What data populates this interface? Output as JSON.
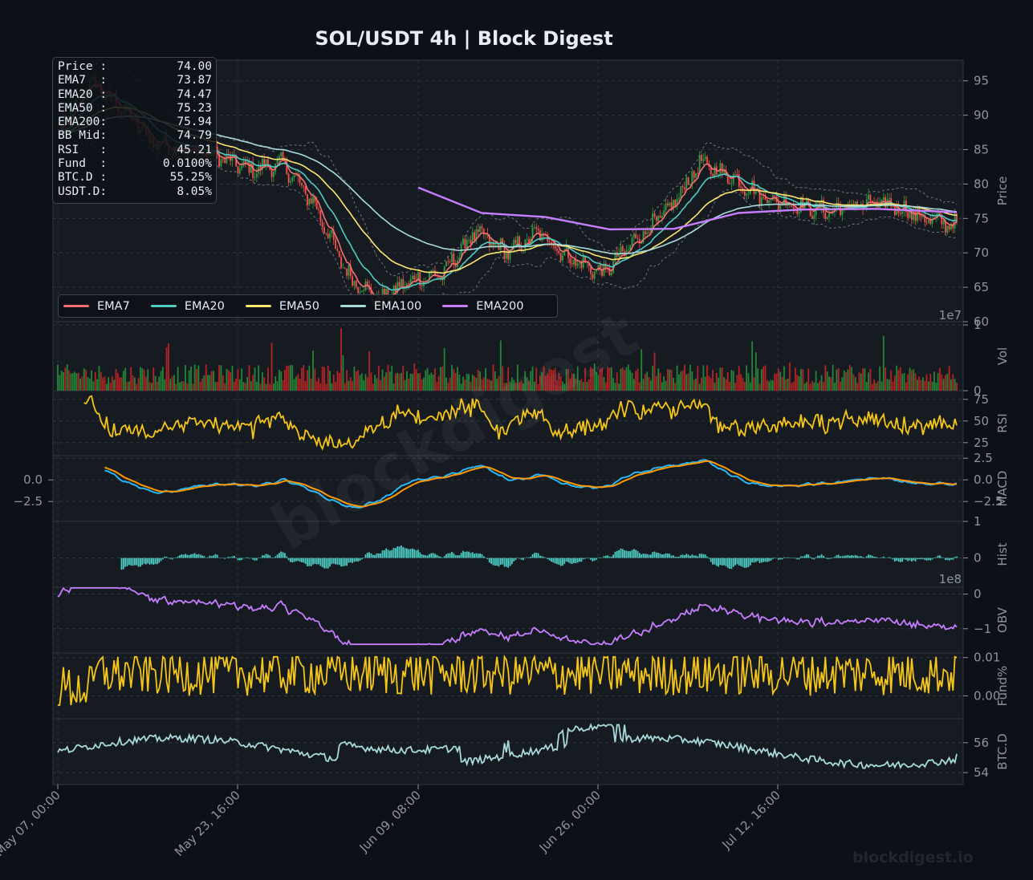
{
  "title": "SOL/USDT  4h  |  Block Digest",
  "watermark": "blockdigest.io",
  "infobox": [
    {
      "label": "Price :",
      "value": "74.00"
    },
    {
      "label": "EMA7  :",
      "value": "73.87"
    },
    {
      "label": "EMA20 :",
      "value": "74.47"
    },
    {
      "label": "EMA50 :",
      "value": "75.23"
    },
    {
      "label": "EMA200:",
      "value": "75.94"
    },
    {
      "label": "BB Mid:",
      "value": "74.79"
    },
    {
      "label": "RSI   :",
      "value": "45.21"
    },
    {
      "label": "Fund  :",
      "value": "0.0100%"
    },
    {
      "label": "BTC.D :",
      "value": "55.25%"
    },
    {
      "label": "USDT.D:",
      "value": "8.05%"
    }
  ],
  "legend": [
    {
      "name": "EMA7",
      "color": "#f47070"
    },
    {
      "name": "EMA20",
      "color": "#4ecdc4"
    },
    {
      "name": "EMA50",
      "color": "#ffe66d"
    },
    {
      "name": "EMA100",
      "color": "#a8dadc"
    },
    {
      "name": "EMA200",
      "color": "#c77dff"
    }
  ],
  "x_ticks": [
    "May 07, 00:00",
    "May 23, 16:00",
    "Jun 09, 08:00",
    "Jun 26, 00:00",
    "Jul 12, 16:00"
  ],
  "chart_data": [
    {
      "type": "line",
      "panel": "Price",
      "ylabel": "Price",
      "ylim": [
        60,
        98
      ],
      "yticks": [
        60,
        65,
        70,
        75,
        80,
        85,
        90,
        95
      ],
      "series": [
        {
          "name": "Price",
          "x": [
            "May 07",
            "May 10",
            "May 13",
            "May 16",
            "May 19",
            "May 22",
            "May 25",
            "May 28",
            "May 31",
            "Jun 03",
            "Jun 06",
            "Jun 09",
            "Jun 12",
            "Jun 15",
            "Jun 18",
            "Jun 21",
            "Jun 24",
            "Jun 27",
            "Jun 30",
            "Jul 03",
            "Jul 06",
            "Jul 09",
            "Jul 12",
            "Jul 15",
            "Jul 18",
            "Jul 21",
            "Jul 24",
            "Jul 27",
            "Jul 28"
          ],
          "values": [
            87,
            95,
            91,
            86,
            85,
            84,
            82,
            83,
            77,
            67,
            63,
            66,
            67,
            73,
            70,
            73,
            69,
            67,
            72,
            76,
            83,
            81,
            78,
            77,
            76,
            77,
            77,
            75,
            74
          ]
        },
        {
          "name": "EMA200",
          "x": [
            "Jun 09",
            "Jun 15",
            "Jun 21",
            "Jun 27",
            "Jul 03",
            "Jul 09",
            "Jul 15",
            "Jul 21",
            "Jul 28"
          ],
          "values": [
            79.5,
            75.8,
            75.2,
            73.4,
            73.5,
            75.8,
            76.3,
            76.4,
            75.9
          ]
        }
      ]
    },
    {
      "type": "bar",
      "panel": "Volume",
      "ylabel": "Vol",
      "exponent": "1e7",
      "yticks": [
        0,
        1
      ]
    },
    {
      "type": "line",
      "panel": "RSI",
      "ylabel": "RSI",
      "yticks": [
        25,
        50,
        75
      ],
      "last": 45.21
    },
    {
      "type": "line",
      "panel": "MACD",
      "ylabel": "MACD",
      "yticks": [
        -2.5,
        0.0,
        2.5
      ],
      "left_yticks": [
        -2.5,
        0.0
      ]
    },
    {
      "type": "bar",
      "panel": "Histogram",
      "ylabel": "Hist",
      "yticks": [
        0,
        1
      ]
    },
    {
      "type": "line",
      "panel": "OBV",
      "ylabel": "OBV",
      "exponent": "1e8",
      "yticks": [
        -1,
        0
      ]
    },
    {
      "type": "line",
      "panel": "Funding",
      "ylabel": "Fund%",
      "yticks": [
        0.0,
        0.01
      ],
      "last": 0.01
    },
    {
      "type": "line",
      "panel": "BTC Dominance",
      "ylabel": "BTC.D",
      "yticks": [
        54,
        56
      ],
      "last": 55.25
    }
  ]
}
